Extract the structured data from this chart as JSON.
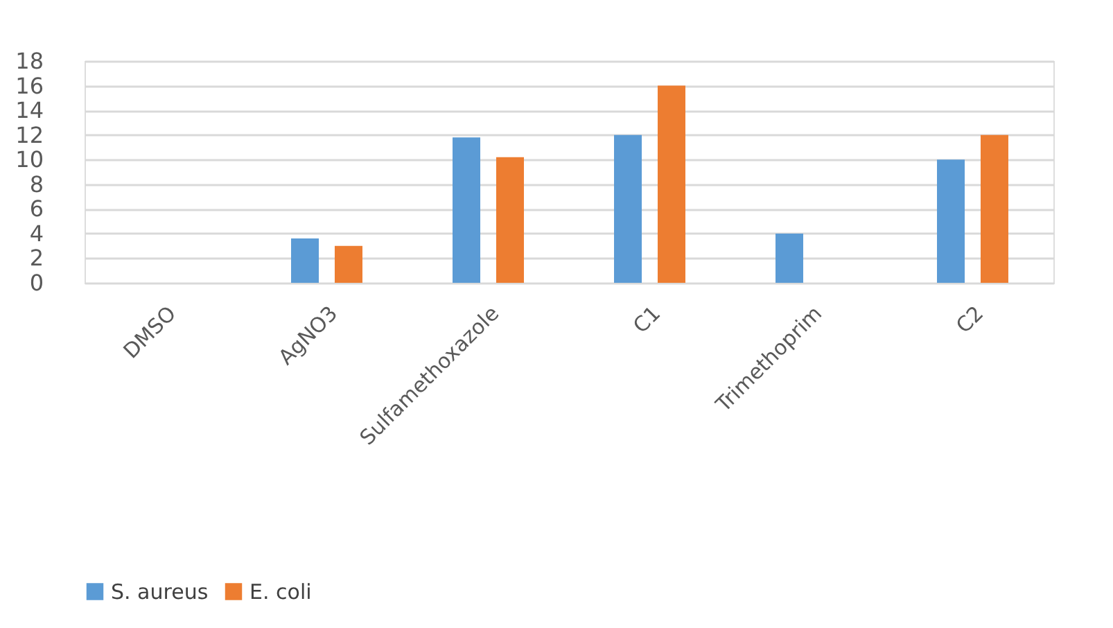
{
  "chart_data": {
    "type": "bar",
    "categories": [
      "DMSO",
      "AgNO3",
      "Sulfamethoxazole",
      "C1",
      "Trimethoprim",
      "C2"
    ],
    "series": [
      {
        "name": "S. aureus",
        "color": "#5b9bd5",
        "values": [
          0,
          3.6,
          11.8,
          12,
          4,
          10
        ]
      },
      {
        "name": "E. coli",
        "color": "#ed7d31",
        "values": [
          0,
          3.0,
          10.2,
          16,
          0,
          12
        ]
      }
    ],
    "ylim": [
      0,
      18
    ],
    "yticks": [
      0,
      2,
      4,
      6,
      8,
      10,
      12,
      14,
      16,
      18
    ],
    "grid": "y",
    "legend": "bottom"
  }
}
